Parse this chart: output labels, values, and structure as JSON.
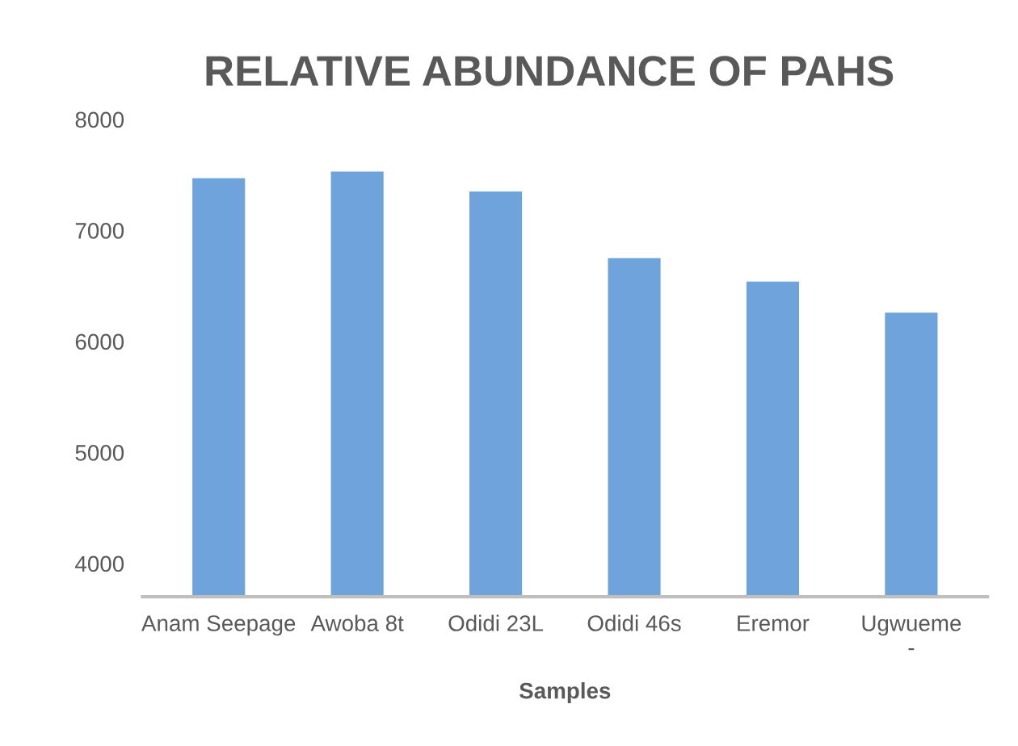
{
  "chart_data": {
    "type": "bar",
    "title": "RELATIVE ABUNDANCE OF PAHS",
    "xlabel": "Samples",
    "categories": [
      "Anam Seepage",
      "Awoba 8t",
      "Odidi 23L",
      "Odidi 46s",
      "Eremor",
      "Ugwueme\n-"
    ],
    "values": [
      7470,
      7530,
      7350,
      6750,
      6540,
      6260
    ],
    "color": "#6fa3dc",
    "ylim": [
      3700,
      8000
    ],
    "yticks": [
      4000,
      5000,
      6000,
      7000,
      8000
    ],
    "grid": false,
    "legend": false
  }
}
